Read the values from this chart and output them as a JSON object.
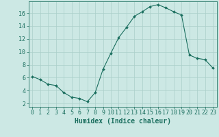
{
  "title": "",
  "xlabel": "Humidex (Indice chaleur)",
  "ylabel": "",
  "x_values": [
    0,
    1,
    2,
    3,
    4,
    5,
    6,
    7,
    8,
    9,
    10,
    11,
    12,
    13,
    14,
    15,
    16,
    17,
    18,
    19,
    20,
    21,
    22,
    23
  ],
  "y_values": [
    6.2,
    5.7,
    5.0,
    4.8,
    3.7,
    3.0,
    2.8,
    2.3,
    3.7,
    7.3,
    9.8,
    12.2,
    13.8,
    15.5,
    16.2,
    17.0,
    17.3,
    16.8,
    16.2,
    15.7,
    9.5,
    9.0,
    8.8,
    7.5
  ],
  "ylim": [
    1.5,
    17.8
  ],
  "xlim": [
    -0.5,
    23.5
  ],
  "yticks": [
    2,
    4,
    6,
    8,
    10,
    12,
    14,
    16
  ],
  "xticks": [
    0,
    1,
    2,
    3,
    4,
    5,
    6,
    7,
    8,
    9,
    10,
    11,
    12,
    13,
    14,
    15,
    16,
    17,
    18,
    19,
    20,
    21,
    22,
    23
  ],
  "line_color": "#1a6e5e",
  "marker": "D",
  "marker_size": 2.0,
  "bg_color": "#cce8e4",
  "grid_color": "#aacfca",
  "axis_color": "#1a6e5e",
  "tick_color": "#1a6e5e",
  "label_color": "#1a6e5e",
  "xlabel_fontsize": 7,
  "tick_fontsize": 6
}
